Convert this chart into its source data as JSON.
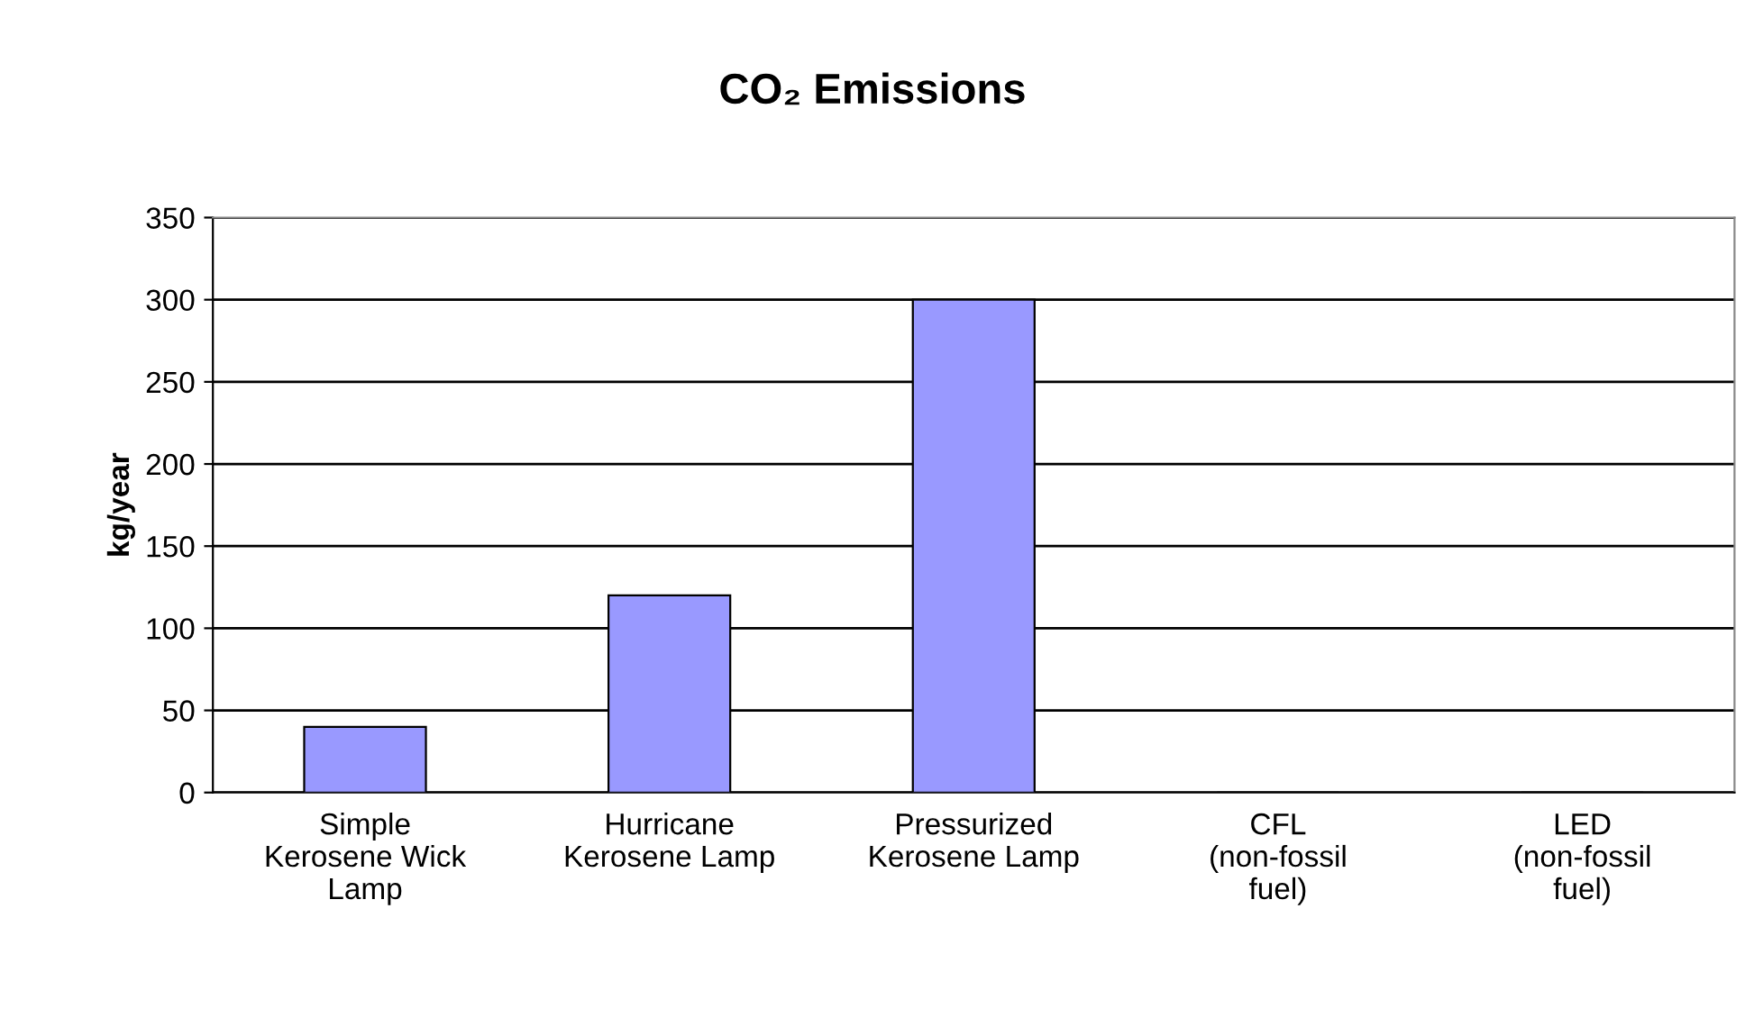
{
  "chart_data": {
    "type": "bar",
    "title": "CO₂ Emissions",
    "ylabel": "kg/year",
    "categories": [
      "Simple\nKerosene Wick\nLamp",
      "Hurricane\nKerosene Lamp",
      "Pressurized\nKerosene Lamp",
      "CFL\n(non-fossil\nfuel)",
      "LED\n(non-fossil\nfuel)"
    ],
    "values": [
      40,
      120,
      300,
      0,
      0
    ],
    "color": "#9999ff",
    "ylim": [
      0,
      350
    ],
    "yticks": [
      0,
      50,
      100,
      150,
      200,
      250,
      300,
      350
    ],
    "grid": "y",
    "legend": false
  }
}
